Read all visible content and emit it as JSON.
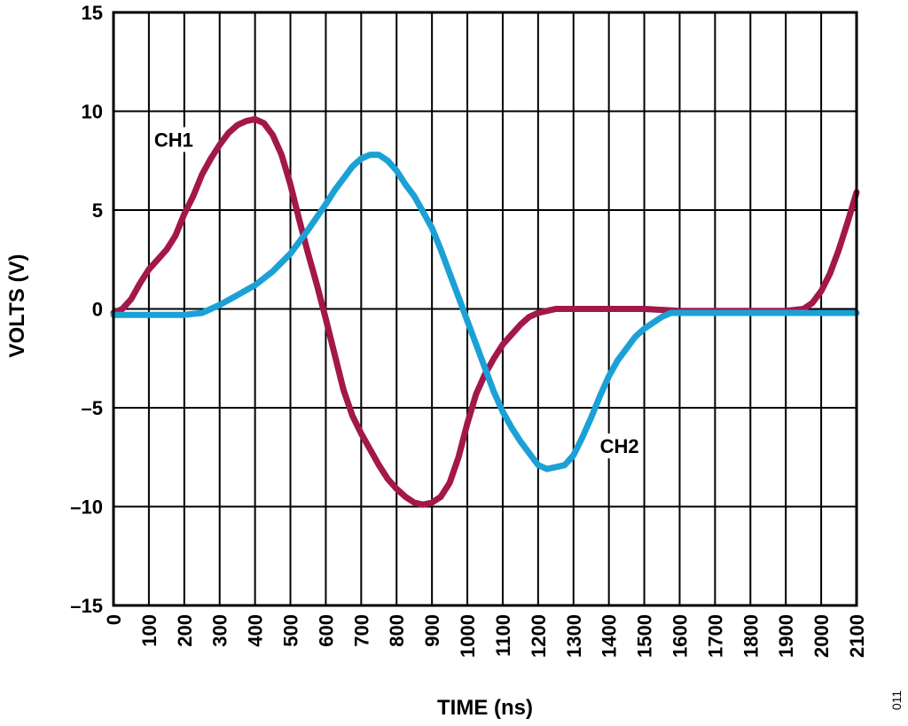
{
  "chart_data": {
    "type": "line",
    "xlabel": "TIME (ns)",
    "ylabel": "VOLTS (V)",
    "xlim": [
      0,
      2100
    ],
    "ylim": [
      -15,
      15
    ],
    "x_ticks": [
      "0",
      "100",
      "200",
      "300",
      "400",
      "500",
      "600",
      "700",
      "800",
      "900",
      "1000",
      "1100",
      "1200",
      "1300",
      "1400",
      "1500",
      "1600",
      "1700",
      "1800",
      "1900",
      "2000",
      "2100"
    ],
    "y_ticks": [
      "15",
      "10",
      "5",
      "0",
      "–5",
      "–10",
      "–15"
    ],
    "y_tick_values": [
      15,
      10,
      5,
      0,
      -5,
      -10,
      -15
    ],
    "grid": true,
    "legend": "none",
    "annotations": [
      {
        "text": "CH1",
        "series": "CH1",
        "x": 170,
        "y": 8.3
      },
      {
        "text": "CH2",
        "series": "CH2",
        "x": 1430,
        "y": -7.2
      }
    ],
    "series": [
      {
        "name": "CH1",
        "color": "#a3174a",
        "points": [
          [
            0,
            -0.2
          ],
          [
            25,
            0
          ],
          [
            50,
            0.5
          ],
          [
            75,
            1.3
          ],
          [
            100,
            2
          ],
          [
            125,
            2.5
          ],
          [
            150,
            3
          ],
          [
            175,
            3.7
          ],
          [
            200,
            4.8
          ],
          [
            225,
            5.7
          ],
          [
            250,
            6.8
          ],
          [
            275,
            7.6
          ],
          [
            300,
            8.3
          ],
          [
            325,
            8.9
          ],
          [
            350,
            9.3
          ],
          [
            375,
            9.5
          ],
          [
            400,
            9.6
          ],
          [
            425,
            9.4
          ],
          [
            450,
            8.8
          ],
          [
            475,
            7.8
          ],
          [
            500,
            6.3
          ],
          [
            525,
            4.5
          ],
          [
            550,
            2.8
          ],
          [
            575,
            1.2
          ],
          [
            600,
            -0.5
          ],
          [
            625,
            -2.3
          ],
          [
            650,
            -4.1
          ],
          [
            675,
            -5.4
          ],
          [
            700,
            -6.3
          ],
          [
            725,
            -7.1
          ],
          [
            750,
            -7.9
          ],
          [
            775,
            -8.6
          ],
          [
            800,
            -9.1
          ],
          [
            825,
            -9.5
          ],
          [
            850,
            -9.8
          ],
          [
            875,
            -9.9
          ],
          [
            900,
            -9.8
          ],
          [
            925,
            -9.5
          ],
          [
            950,
            -8.8
          ],
          [
            975,
            -7.5
          ],
          [
            1000,
            -5.8
          ],
          [
            1025,
            -4.3
          ],
          [
            1050,
            -3.3
          ],
          [
            1075,
            -2.5
          ],
          [
            1100,
            -1.8
          ],
          [
            1125,
            -1.3
          ],
          [
            1150,
            -0.8
          ],
          [
            1175,
            -0.4
          ],
          [
            1200,
            -0.2
          ],
          [
            1225,
            -0.1
          ],
          [
            1250,
            0
          ],
          [
            1300,
            0
          ],
          [
            1400,
            0
          ],
          [
            1500,
            0
          ],
          [
            1600,
            -0.1
          ],
          [
            1700,
            -0.1
          ],
          [
            1800,
            -0.1
          ],
          [
            1900,
            -0.1
          ],
          [
            1950,
            0
          ],
          [
            1975,
            0.3
          ],
          [
            2000,
            0.9
          ],
          [
            2025,
            1.8
          ],
          [
            2050,
            3
          ],
          [
            2075,
            4.4
          ],
          [
            2100,
            5.9
          ]
        ]
      },
      {
        "name": "CH2",
        "color": "#1ba1d6",
        "points": [
          [
            0,
            -0.3
          ],
          [
            50,
            -0.3
          ],
          [
            100,
            -0.3
          ],
          [
            150,
            -0.3
          ],
          [
            200,
            -0.3
          ],
          [
            250,
            -0.2
          ],
          [
            300,
            0.2
          ],
          [
            350,
            0.7
          ],
          [
            400,
            1.2
          ],
          [
            450,
            1.9
          ],
          [
            500,
            2.8
          ],
          [
            550,
            4
          ],
          [
            600,
            5.3
          ],
          [
            625,
            6
          ],
          [
            650,
            6.6
          ],
          [
            675,
            7.2
          ],
          [
            700,
            7.6
          ],
          [
            725,
            7.8
          ],
          [
            750,
            7.8
          ],
          [
            775,
            7.5
          ],
          [
            800,
            7
          ],
          [
            825,
            6.3
          ],
          [
            850,
            5.7
          ],
          [
            875,
            4.9
          ],
          [
            900,
            4.1
          ],
          [
            925,
            3
          ],
          [
            950,
            1.8
          ],
          [
            975,
            0.6
          ],
          [
            1000,
            -0.6
          ],
          [
            1025,
            -1.8
          ],
          [
            1050,
            -3
          ],
          [
            1075,
            -4.2
          ],
          [
            1100,
            -5.2
          ],
          [
            1125,
            -6
          ],
          [
            1150,
            -6.7
          ],
          [
            1175,
            -7.3
          ],
          [
            1200,
            -7.9
          ],
          [
            1225,
            -8.1
          ],
          [
            1250,
            -8
          ],
          [
            1275,
            -7.9
          ],
          [
            1300,
            -7.4
          ],
          [
            1325,
            -6.5
          ],
          [
            1350,
            -5.5
          ],
          [
            1375,
            -4.4
          ],
          [
            1400,
            -3.4
          ],
          [
            1425,
            -2.6
          ],
          [
            1450,
            -2
          ],
          [
            1475,
            -1.4
          ],
          [
            1500,
            -1
          ],
          [
            1525,
            -0.7
          ],
          [
            1550,
            -0.4
          ],
          [
            1575,
            -0.2
          ],
          [
            1600,
            -0.2
          ],
          [
            1650,
            -0.2
          ],
          [
            1700,
            -0.2
          ],
          [
            1800,
            -0.2
          ],
          [
            1900,
            -0.2
          ],
          [
            2000,
            -0.2
          ],
          [
            2100,
            -0.2
          ]
        ]
      }
    ]
  },
  "figure_id": "011"
}
